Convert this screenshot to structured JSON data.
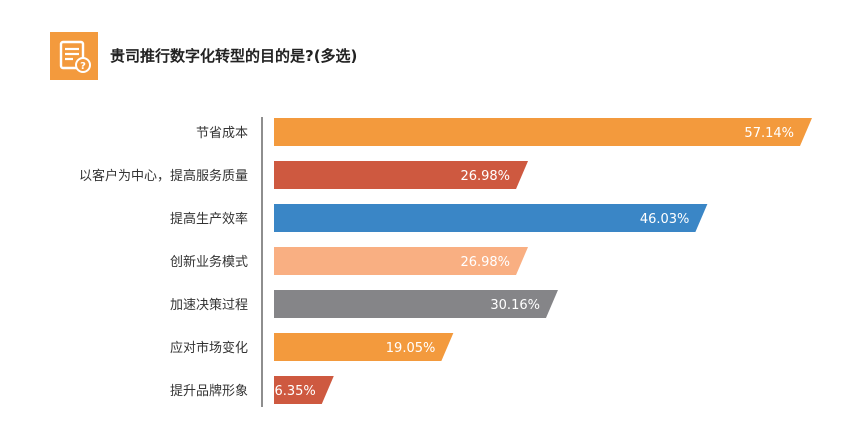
{
  "header": {
    "icon": "document-question-icon",
    "title": "贵司推行数字化转型的目的是?(多选)"
  },
  "chart_data": {
    "type": "bar",
    "orientation": "horizontal",
    "title": "贵司推行数字化转型的目的是?(多选)",
    "xlabel": "",
    "ylabel": "",
    "categories": [
      "节省成本",
      "以客户为中心，提高服务质量",
      "提高生产效率",
      "创新业务模式",
      "加速决策过程",
      "应对市场变化",
      "提升品牌形象"
    ],
    "values": [
      57.14,
      26.98,
      46.03,
      26.98,
      30.16,
      19.05,
      6.35
    ],
    "value_labels": [
      "57.14%",
      "26.98%",
      "46.03%",
      "26.98%",
      "30.16%",
      "19.05%",
      "6.35%"
    ],
    "colors": [
      "#F39A3D",
      "#CE5940",
      "#3A86C6",
      "#F9AF82",
      "#858588",
      "#F39A3D",
      "#CE5940"
    ],
    "xlim": [
      0,
      57.14
    ],
    "grid": false,
    "legend": "none"
  }
}
